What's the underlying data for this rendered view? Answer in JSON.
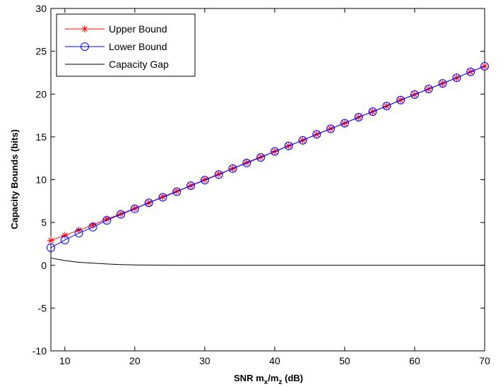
{
  "chart_data": {
    "type": "line",
    "xlabel_main": "SNR m",
    "xlabel_sub1": "x",
    "xlabel_mid": "/m",
    "xlabel_sub2": "z",
    "xlabel_end": " (dB)",
    "ylabel": "Capacity Bounds (bits)",
    "xlim": [
      8,
      70
    ],
    "ylim": [
      -10,
      30
    ],
    "xticks": [
      10,
      20,
      30,
      40,
      50,
      60,
      70
    ],
    "yticks": [
      -10,
      -5,
      0,
      5,
      10,
      15,
      20,
      25,
      30
    ],
    "grid": false,
    "legend_position": "top-left",
    "x": [
      8,
      10,
      12,
      14,
      16,
      18,
      20,
      22,
      24,
      26,
      28,
      30,
      32,
      34,
      36,
      38,
      40,
      42,
      44,
      46,
      48,
      50,
      52,
      54,
      56,
      58,
      60,
      62,
      64,
      66,
      68,
      70
    ],
    "series": [
      {
        "name": "Upper Bound",
        "color": "#ff0000",
        "marker": "asterisk",
        "values": [
          2.9,
          3.5,
          4.1,
          4.7,
          5.4,
          6.0,
          6.65,
          7.3,
          8.0,
          8.65,
          9.3,
          10.0,
          10.65,
          11.3,
          12.0,
          12.65,
          13.3,
          13.95,
          14.6,
          15.3,
          15.95,
          16.6,
          17.3,
          17.95,
          18.6,
          19.3,
          19.95,
          20.6,
          21.25,
          21.9,
          22.6,
          23.25
        ]
      },
      {
        "name": "Lower Bound",
        "color": "#0000ff",
        "marker": "circle",
        "values": [
          2.05,
          2.95,
          3.75,
          4.45,
          5.25,
          5.95,
          6.6,
          7.3,
          7.95,
          8.6,
          9.3,
          9.95,
          10.6,
          11.3,
          11.95,
          12.6,
          13.3,
          13.95,
          14.6,
          15.3,
          15.95,
          16.6,
          17.3,
          17.95,
          18.6,
          19.3,
          19.95,
          20.6,
          21.25,
          21.9,
          22.6,
          23.25
        ]
      },
      {
        "name": "Capacity Gap",
        "color": "#000000",
        "marker": "none",
        "values": [
          0.85,
          0.55,
          0.35,
          0.25,
          0.15,
          0.08,
          0.04,
          0.02,
          0.01,
          0.0,
          0.0,
          0.0,
          0.0,
          0.0,
          0.0,
          0.0,
          0.0,
          0.0,
          0.0,
          0.0,
          0.0,
          0.0,
          0.0,
          0.0,
          0.0,
          0.0,
          0.0,
          0.0,
          0.0,
          0.0,
          0.0,
          0.0
        ]
      }
    ]
  }
}
